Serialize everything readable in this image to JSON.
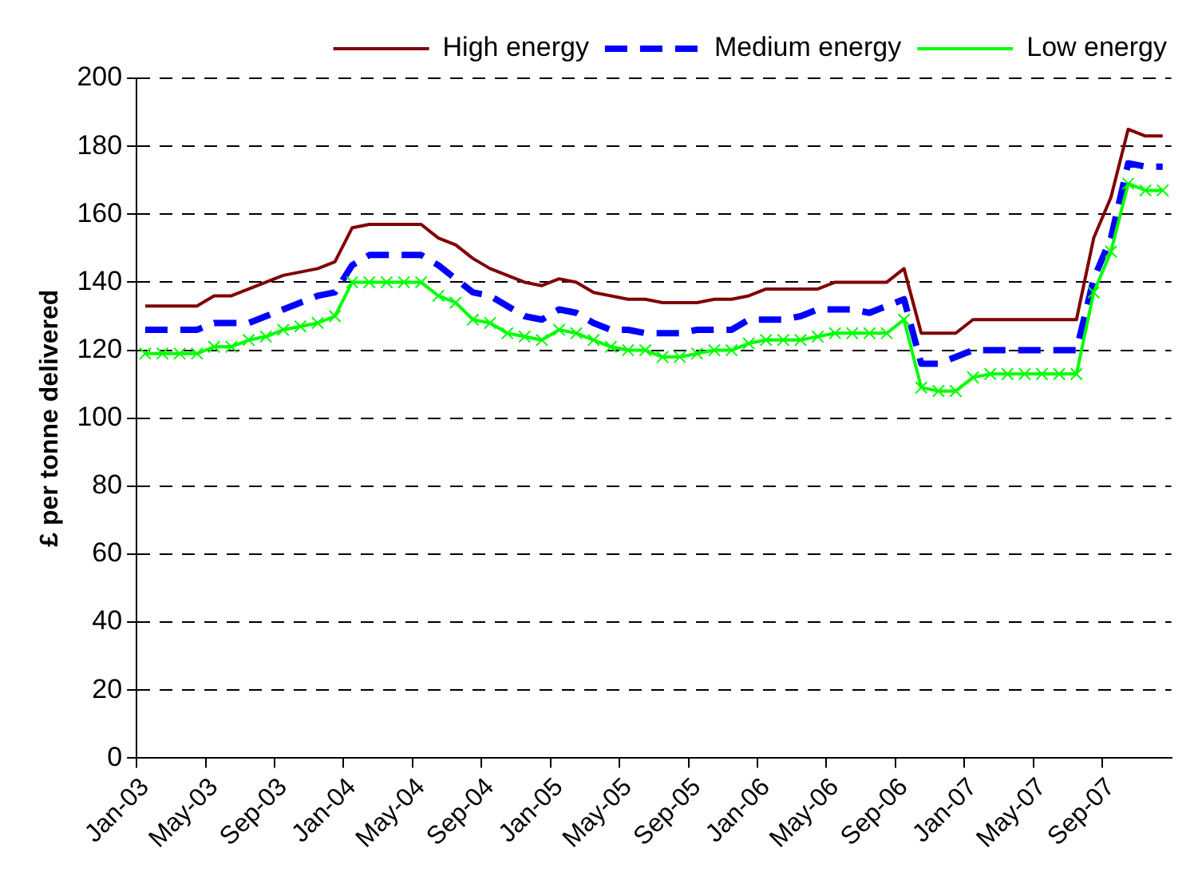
{
  "chart_data": {
    "type": "line",
    "ylabel": "£ per tonne delivered",
    "categories": [
      "Jan-03",
      null,
      null,
      null,
      "May-03",
      null,
      null,
      null,
      "Sep-03",
      null,
      null,
      null,
      "Jan-04",
      null,
      null,
      null,
      "May-04",
      null,
      null,
      null,
      "Sep-04",
      null,
      null,
      null,
      "Jan-05",
      null,
      null,
      null,
      "May-05",
      null,
      null,
      null,
      "Sep-05",
      null,
      null,
      null,
      "Jan-06",
      null,
      null,
      null,
      "May-06",
      null,
      null,
      null,
      "Sep-06",
      null,
      null,
      null,
      "Jan-07",
      null,
      null,
      null,
      "May-07",
      null,
      null,
      null,
      "Sep-07",
      null,
      null,
      null
    ],
    "series": [
      {
        "name": "High energy",
        "color": "#800000",
        "line_style": "solid",
        "marker": "none",
        "values": [
          133,
          133,
          133,
          133,
          136,
          136,
          138,
          140,
          142,
          143,
          144,
          146,
          156,
          157,
          157,
          157,
          157,
          153,
          151,
          147,
          144,
          142,
          140,
          139,
          141,
          140,
          137,
          136,
          135,
          135,
          134,
          134,
          134,
          135,
          135,
          136,
          138,
          138,
          138,
          138,
          140,
          140,
          140,
          140,
          144,
          125,
          125,
          125,
          129,
          129,
          129,
          129,
          129,
          129,
          129,
          153,
          165,
          185,
          183,
          183
        ]
      },
      {
        "name": "Medium energy",
        "color": "#0000ff",
        "line_style": "dashed",
        "marker": "none",
        "values": [
          126,
          126,
          126,
          126,
          128,
          128,
          128,
          130,
          132,
          134,
          136,
          137,
          145,
          148,
          148,
          148,
          148,
          145,
          141,
          137,
          136,
          133,
          130,
          129,
          132,
          131,
          128,
          126,
          126,
          125,
          125,
          125,
          126,
          126,
          126,
          129,
          129,
          129,
          130,
          132,
          132,
          132,
          131,
          133,
          135,
          116,
          116,
          118,
          120,
          120,
          120,
          120,
          120,
          120,
          120,
          141,
          153,
          175,
          174,
          174
        ]
      },
      {
        "name": "Low energy",
        "color": "#00ff00",
        "line_style": "solid",
        "marker": "cross",
        "values": [
          119,
          119,
          119,
          119,
          121,
          121,
          123,
          124,
          126,
          127,
          128,
          130,
          140,
          140,
          140,
          140,
          140,
          136,
          134,
          129,
          128,
          125,
          124,
          123,
          126,
          125,
          123,
          121,
          120,
          120,
          118,
          118,
          119,
          120,
          120,
          122,
          123,
          123,
          123,
          124,
          125,
          125,
          125,
          125,
          129,
          109,
          108,
          108,
          112,
          113,
          113,
          113,
          113,
          113,
          113,
          137,
          149,
          169,
          167,
          167
        ]
      }
    ],
    "ylim": [
      0,
      200
    ],
    "yticks": [
      0,
      20,
      40,
      60,
      80,
      100,
      120,
      140,
      160,
      180,
      200
    ],
    "grid": "y",
    "legend": "top"
  }
}
